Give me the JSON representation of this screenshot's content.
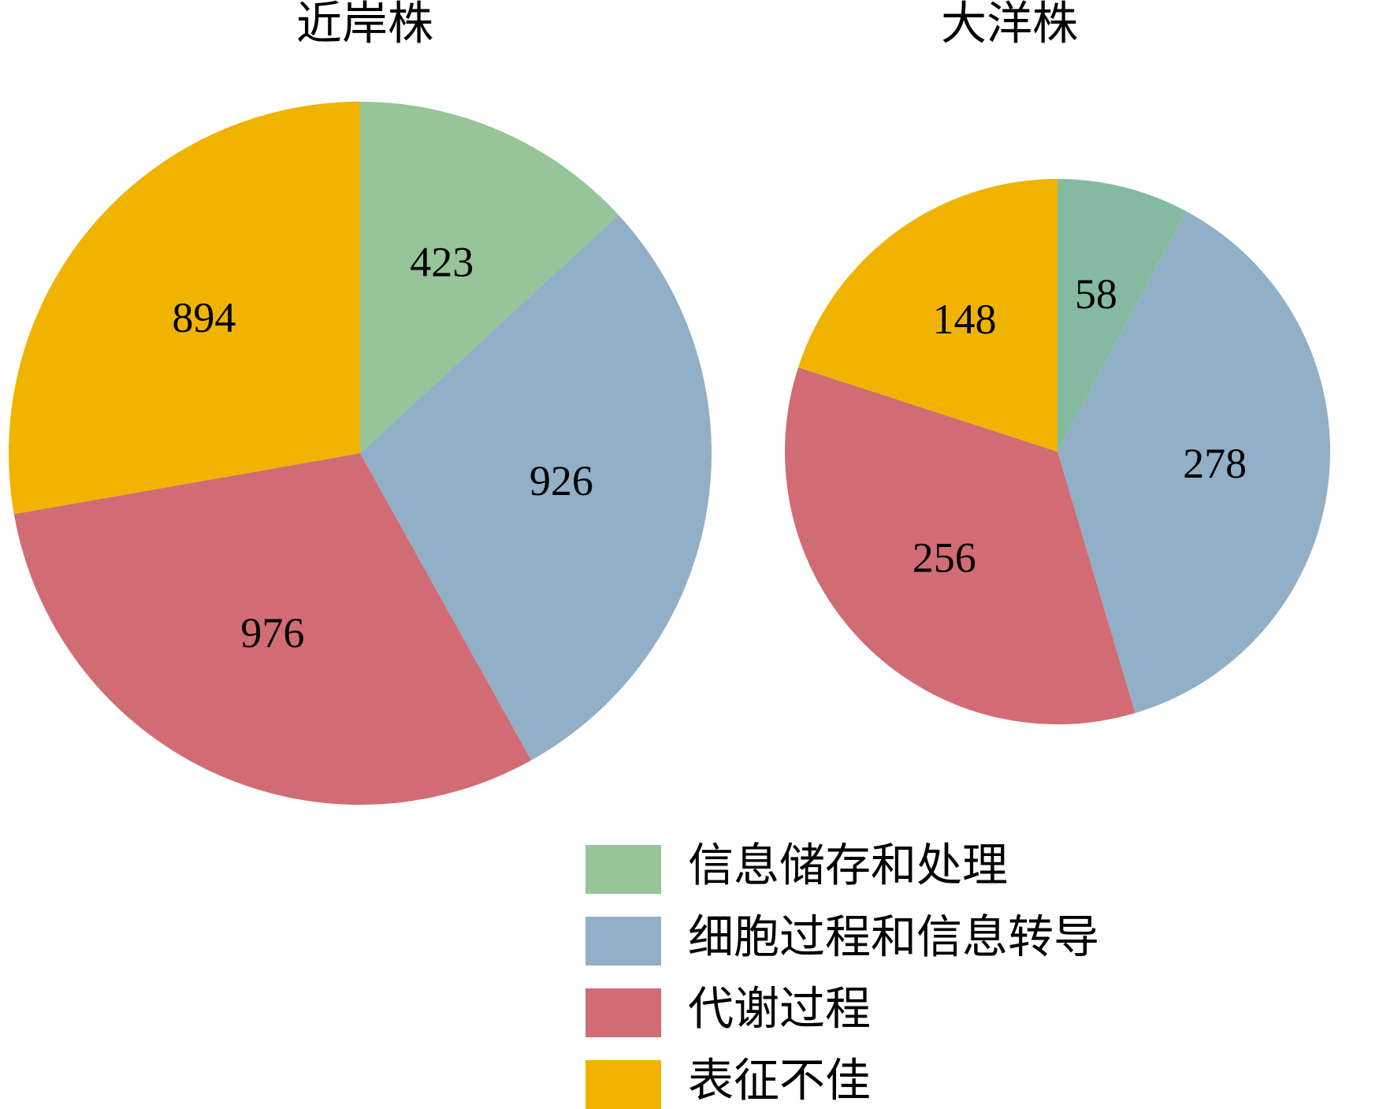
{
  "chart_data": [
    {
      "type": "pie",
      "title": "近岸株",
      "values": [
        423,
        926,
        976,
        894
      ],
      "colors": [
        "#95c598",
        "#91afc6",
        "#d16c74",
        "#f0b400"
      ]
    },
    {
      "type": "pie",
      "title": "大洋株",
      "values": [
        58,
        278,
        256,
        148
      ],
      "colors": [
        "#84bba0",
        "#91afc6",
        "#d16c74",
        "#f0b400"
      ]
    }
  ],
  "legend": {
    "labels": [
      "信息储存和处理",
      "细胞过程和信息转导",
      "代谢过程",
      "表征不佳"
    ],
    "colors": [
      "#95c598",
      "#91afc6",
      "#d16c74",
      "#f0b400"
    ]
  }
}
